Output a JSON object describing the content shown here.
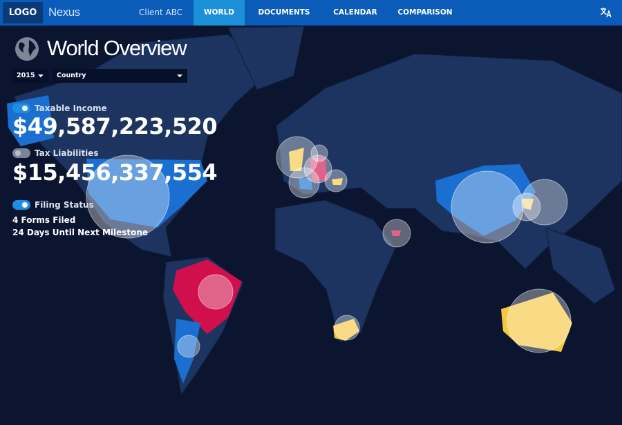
{
  "header": {
    "logo": "LOGO",
    "brand": "Nexus",
    "client": "Client ABC",
    "tabs": [
      "WORLD",
      "DOCUMENTS",
      "CALENDAR",
      "COMPARISON"
    ]
  },
  "panel": {
    "title": "World Overview",
    "year": "2015",
    "scope": "Country",
    "metrics": [
      {
        "label": "Taxable Income",
        "value": "$49,587,223,520"
      },
      {
        "label": "Tax Liabilities",
        "value": "$15,456,337,554"
      }
    ],
    "filing": {
      "label": "Filing Status",
      "lines": [
        "4 Forms Filed",
        "24 Days Until Next Milestone"
      ]
    }
  }
}
